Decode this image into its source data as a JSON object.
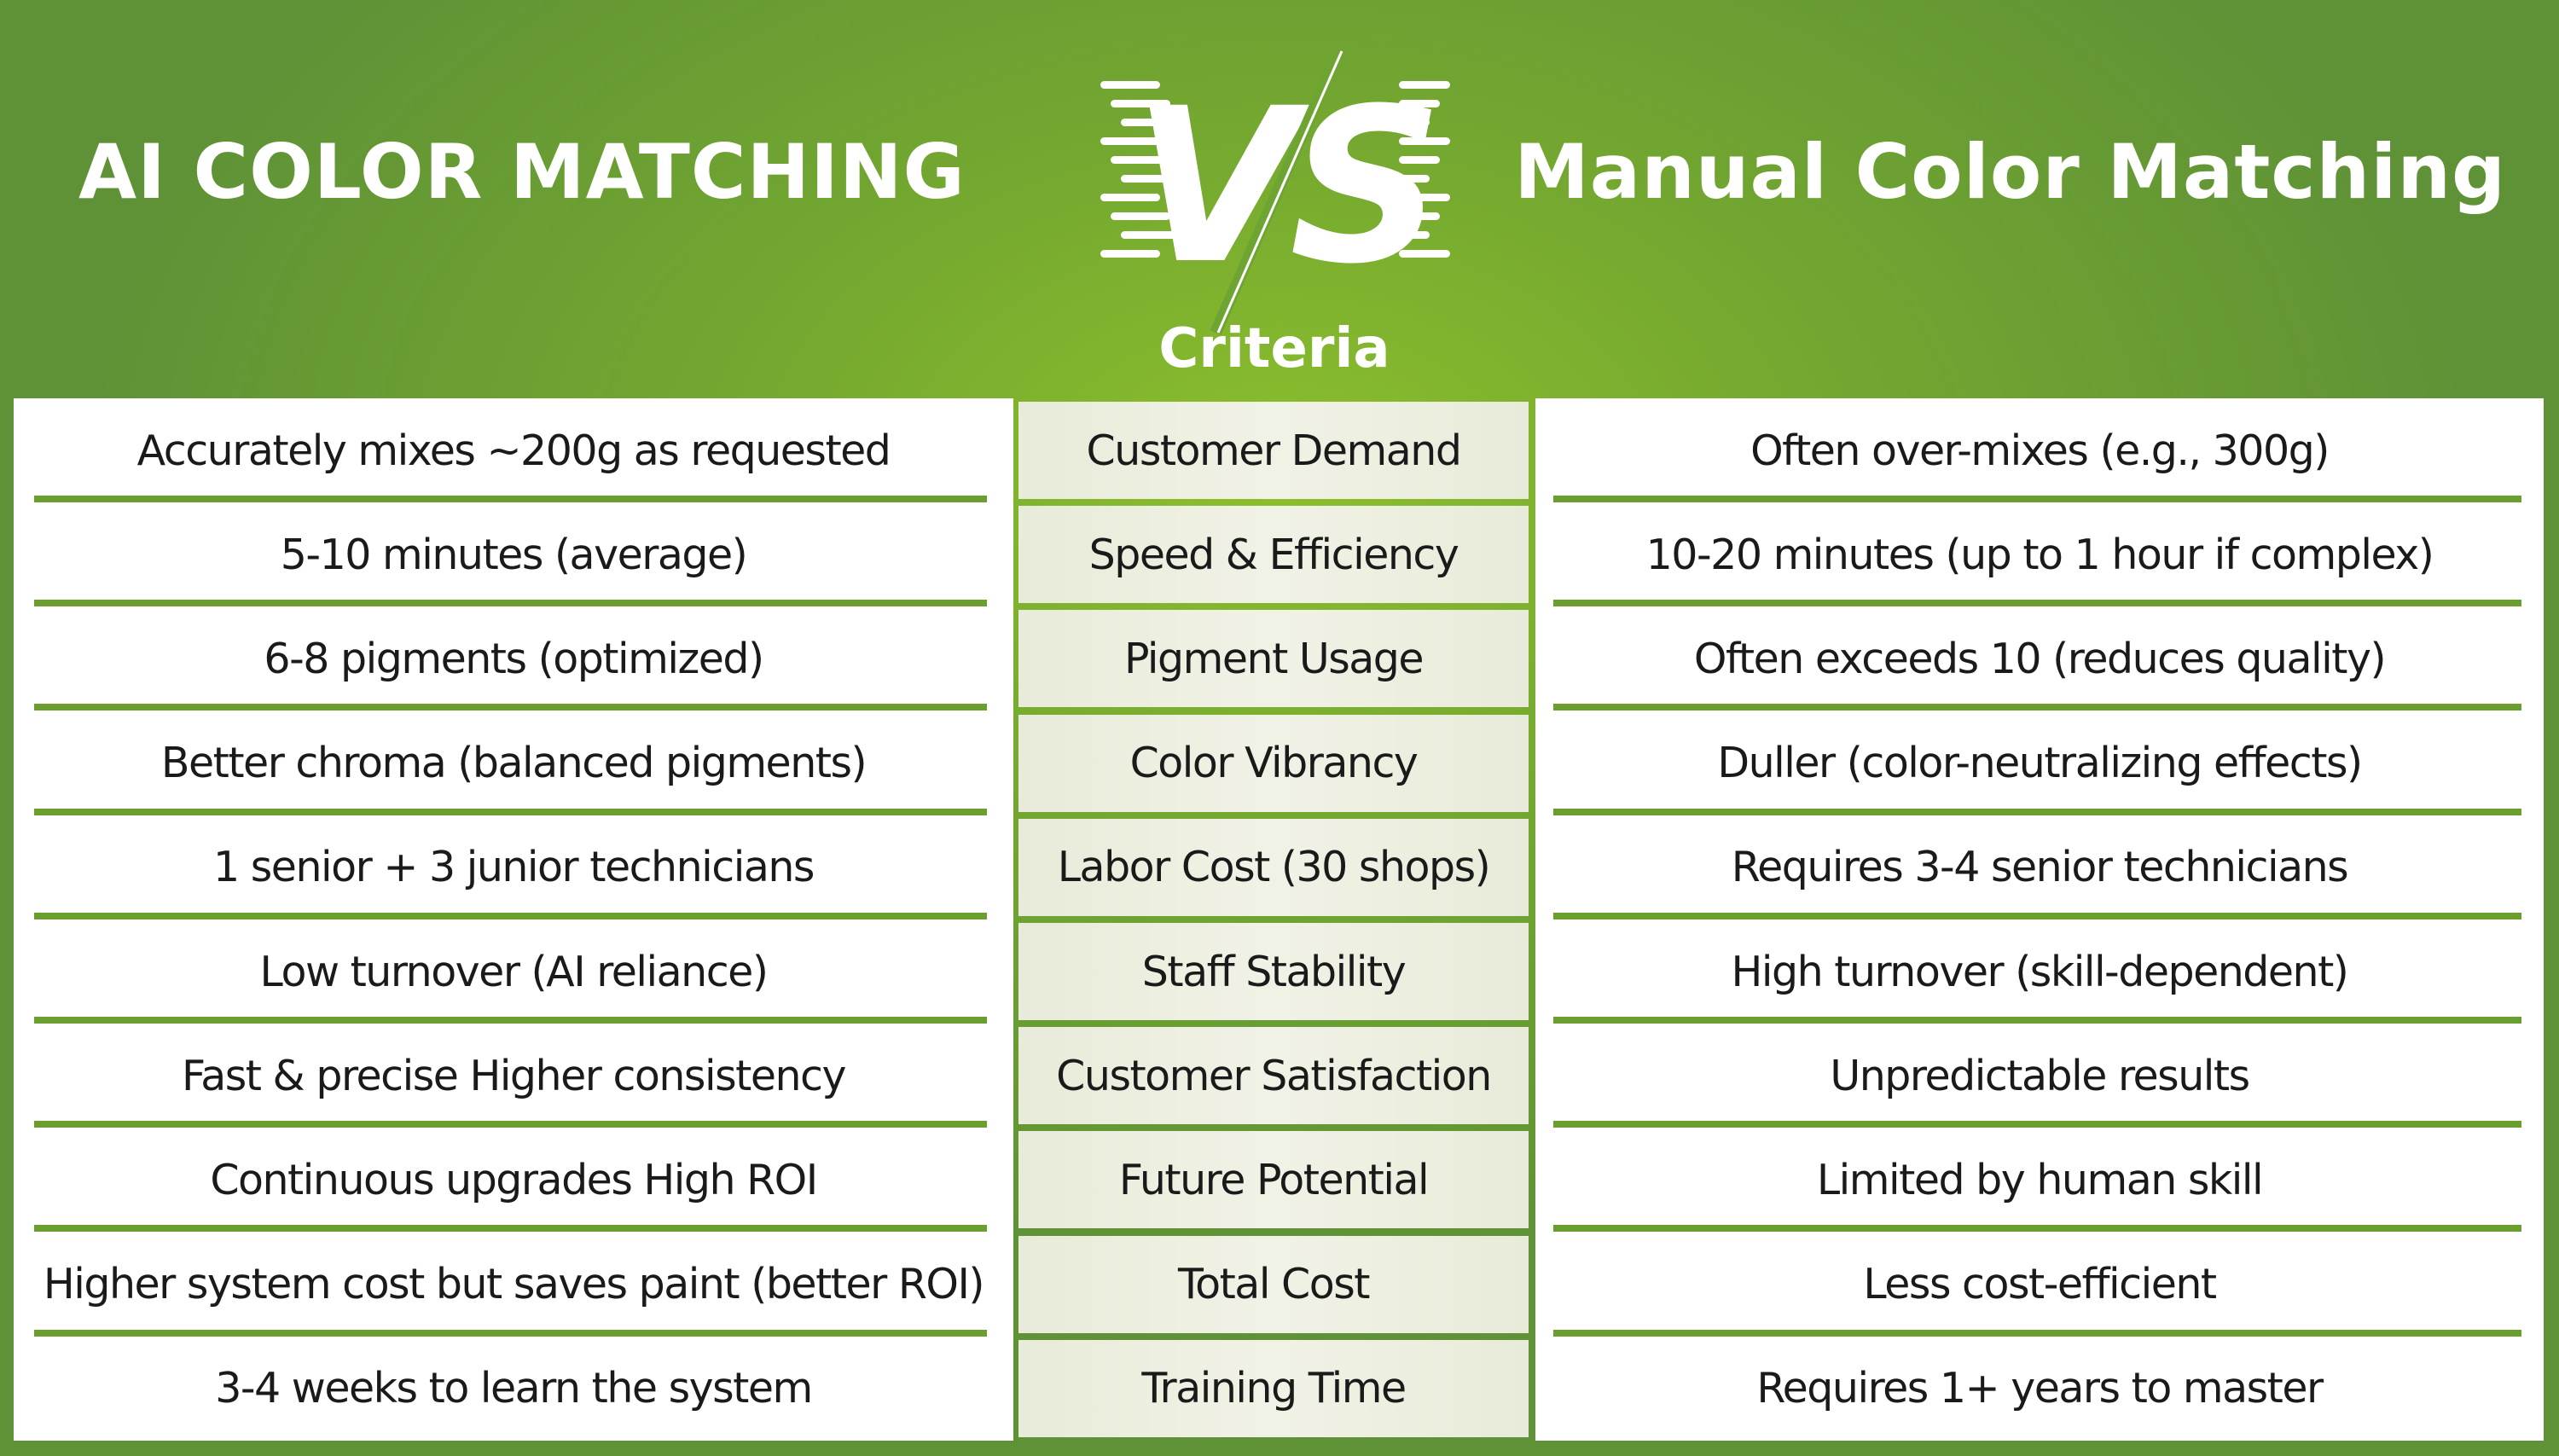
{
  "header": {
    "left_title": "AI COLOR MATCHING",
    "right_title": "Manual Color Matching",
    "vs_logo": "VS",
    "criteria_label": "Criteria"
  },
  "colors": {
    "background_green": "#6ea431",
    "light_green": "#8cbf2c",
    "separator": "#6a9e2e",
    "criteria_cell": "#eef0e2"
  },
  "rows": [
    {
      "ai": "Accurately mixes ~200g as requested",
      "criteria": "Customer Demand",
      "manual": "Often over-mixes (e.g., 300g)"
    },
    {
      "ai": "5-10 minutes (average)",
      "criteria": "Speed & Efficiency",
      "manual": "10-20 minutes (up to 1 hour if complex)"
    },
    {
      "ai": "6-8 pigments (optimized)",
      "criteria": "Pigment Usage",
      "manual": "Often exceeds 10 (reduces quality)"
    },
    {
      "ai": "Better chroma (balanced pigments)",
      "criteria": "Color Vibrancy",
      "manual": "Duller (color-neutralizing effects)"
    },
    {
      "ai": "1 senior + 3 junior technicians",
      "criteria": "Labor Cost (30 shops)",
      "manual": "Requires 3-4 senior technicians"
    },
    {
      "ai": "Low turnover (AI reliance)",
      "criteria": "Staff Stability",
      "manual": "High turnover (skill-dependent)"
    },
    {
      "ai": "Fast & precise Higher consistency",
      "criteria": "Customer Satisfaction",
      "manual": "Unpredictable results"
    },
    {
      "ai": "Continuous upgrades High ROI",
      "criteria": "Future Potential",
      "manual": "Limited by human skill"
    },
    {
      "ai": "Higher system cost  but saves paint (better ROI)",
      "criteria": "Total Cost",
      "manual": "Less cost-efficient"
    },
    {
      "ai": "3-4 weeks to learn the system",
      "criteria": "Training Time",
      "manual": "Requires 1+ years to master"
    }
  ]
}
